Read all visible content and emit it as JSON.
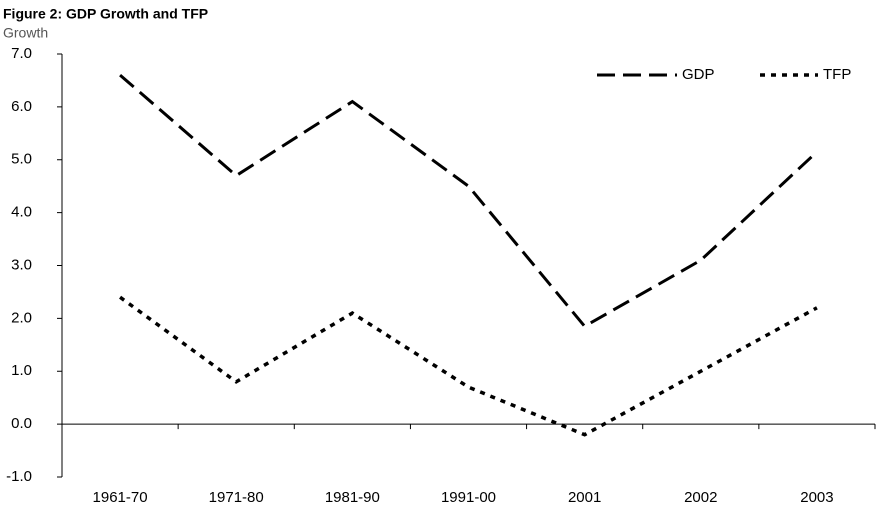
{
  "chart_data": {
    "type": "line",
    "title": "Figure 2: GDP Growth and TFP",
    "subtitle": "Growth",
    "categories": [
      "1961-70",
      "1971-80",
      "1981-90",
      "1991-00",
      "2001",
      "2002",
      "2003"
    ],
    "series": [
      {
        "name": "GDP",
        "color": "#000000",
        "style": "dashed",
        "values": [
          6.6,
          4.7,
          6.1,
          4.5,
          1.85,
          3.1,
          5.15
        ]
      },
      {
        "name": "TFP",
        "color": "#000000",
        "style": "dotted",
        "values": [
          2.4,
          0.8,
          2.1,
          0.7,
          -0.2,
          1.0,
          2.2
        ]
      }
    ],
    "ylim": [
      -1,
      7
    ],
    "yticks": [
      {
        "value": -1,
        "label": "-1.0"
      },
      {
        "value": 0,
        "label": "0.0"
      },
      {
        "value": 1,
        "label": "1.0"
      },
      {
        "value": 2,
        "label": "2.0"
      },
      {
        "value": 3,
        "label": "3.0"
      },
      {
        "value": 4,
        "label": "4.0"
      },
      {
        "value": 5,
        "label": "5.0"
      },
      {
        "value": 6,
        "label": "6.0"
      },
      {
        "value": 7,
        "label": "7.0"
      }
    ],
    "legend": "top-right"
  }
}
